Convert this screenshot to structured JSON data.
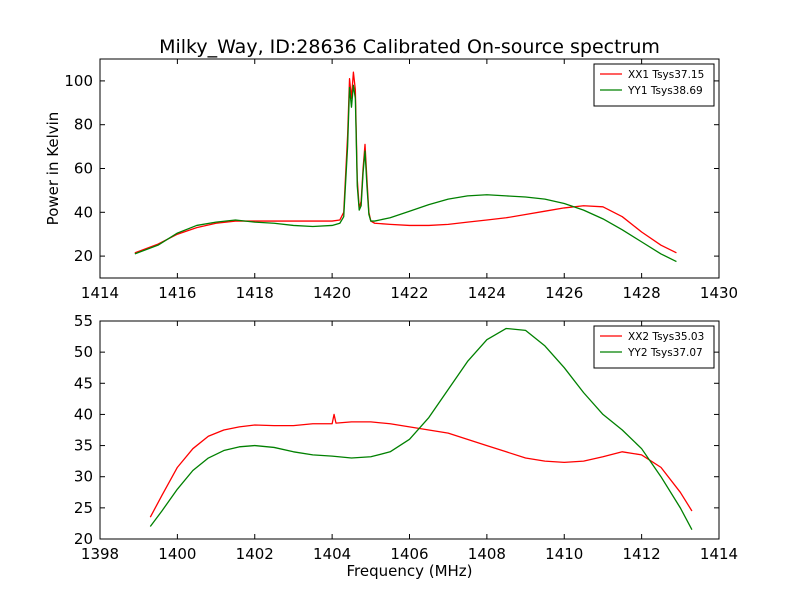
{
  "chart_data": [
    {
      "type": "line",
      "title": "Milky_Way, ID:28636 Calibrated On-source spectrum",
      "xlabel": "",
      "ylabel": "Power in Kelvin",
      "xlim": [
        1414,
        1430
      ],
      "ylim": [
        10,
        110
      ],
      "xticks": [
        1414,
        1416,
        1418,
        1420,
        1422,
        1424,
        1426,
        1428,
        1430
      ],
      "yticks": [
        20,
        40,
        60,
        80,
        100
      ],
      "grid": false,
      "legend_position": "top-right",
      "series": [
        {
          "name": "XX1 Tsys37.15",
          "color": "#ff0000",
          "x": [
            1414.9,
            1415.5,
            1416.0,
            1416.5,
            1417.0,
            1417.5,
            1418.0,
            1418.5,
            1419.0,
            1419.5,
            1420.0,
            1420.2,
            1420.3,
            1420.4,
            1420.45,
            1420.5,
            1420.55,
            1420.6,
            1420.65,
            1420.7,
            1420.75,
            1420.8,
            1420.85,
            1420.9,
            1420.95,
            1421.0,
            1421.1,
            1421.5,
            1422.0,
            1422.5,
            1423.0,
            1423.5,
            1424.0,
            1424.5,
            1425.0,
            1425.5,
            1426.0,
            1426.5,
            1427.0,
            1427.5,
            1428.0,
            1428.5,
            1428.9
          ],
          "y": [
            21.5,
            25.5,
            30.0,
            33.0,
            35.0,
            36.0,
            36.0,
            36.0,
            36.0,
            36.0,
            36.0,
            36.5,
            40.0,
            75.0,
            101.0,
            92.0,
            104.0,
            96.0,
            55.0,
            42.0,
            45.0,
            60.0,
            71.0,
            55.0,
            40.0,
            36.0,
            35.0,
            34.5,
            34.0,
            34.0,
            34.5,
            35.5,
            36.5,
            37.5,
            39.0,
            40.5,
            42.0,
            43.0,
            42.5,
            38.0,
            31.0,
            25.0,
            21.5
          ]
        },
        {
          "name": "YY1 Tsys38.69",
          "color": "#008000",
          "x": [
            1414.9,
            1415.5,
            1416.0,
            1416.5,
            1417.0,
            1417.5,
            1418.0,
            1418.5,
            1419.0,
            1419.5,
            1420.0,
            1420.2,
            1420.3,
            1420.4,
            1420.45,
            1420.5,
            1420.55,
            1420.6,
            1420.65,
            1420.7,
            1420.75,
            1420.8,
            1420.85,
            1420.9,
            1420.95,
            1421.0,
            1421.1,
            1421.5,
            1422.0,
            1422.5,
            1423.0,
            1423.5,
            1424.0,
            1424.5,
            1425.0,
            1425.5,
            1426.0,
            1426.5,
            1427.0,
            1427.5,
            1428.0,
            1428.5,
            1428.9
          ],
          "y": [
            21.0,
            25.0,
            30.5,
            34.0,
            35.5,
            36.5,
            35.5,
            35.0,
            34.0,
            33.5,
            34.0,
            35.0,
            38.0,
            70.0,
            97.0,
            88.0,
            98.0,
            92.0,
            52.0,
            41.0,
            43.0,
            58.0,
            68.0,
            52.0,
            39.0,
            36.0,
            36.0,
            37.5,
            40.5,
            43.5,
            46.0,
            47.5,
            48.0,
            47.5,
            47.0,
            46.0,
            44.0,
            41.0,
            37.0,
            32.0,
            26.5,
            21.0,
            17.5
          ]
        }
      ]
    },
    {
      "type": "line",
      "title": "",
      "xlabel": "Frequency (MHz)",
      "ylabel": "",
      "xlim": [
        1398,
        1414
      ],
      "ylim": [
        20,
        55
      ],
      "xticks": [
        1398,
        1400,
        1402,
        1404,
        1406,
        1408,
        1410,
        1412,
        1414
      ],
      "yticks": [
        20,
        25,
        30,
        35,
        40,
        45,
        50,
        55
      ],
      "grid": false,
      "legend_position": "top-right",
      "series": [
        {
          "name": "XX2 Tsys35.03",
          "color": "#ff0000",
          "x": [
            1399.3,
            1399.6,
            1400.0,
            1400.4,
            1400.8,
            1401.2,
            1401.6,
            1402.0,
            1402.5,
            1403.0,
            1403.5,
            1404.0,
            1404.05,
            1404.1,
            1404.5,
            1405.0,
            1405.5,
            1406.0,
            1406.5,
            1407.0,
            1407.5,
            1408.0,
            1408.5,
            1409.0,
            1409.5,
            1410.0,
            1410.5,
            1411.0,
            1411.5,
            1412.0,
            1412.5,
            1413.0,
            1413.3
          ],
          "y": [
            23.5,
            27.0,
            31.5,
            34.5,
            36.5,
            37.5,
            38.0,
            38.3,
            38.2,
            38.2,
            38.5,
            38.5,
            40.0,
            38.6,
            38.8,
            38.8,
            38.5,
            38.0,
            37.5,
            37.0,
            36.0,
            35.0,
            34.0,
            33.0,
            32.5,
            32.3,
            32.5,
            33.2,
            34.0,
            33.5,
            31.5,
            27.5,
            24.5
          ]
        },
        {
          "name": "YY2 Tsys37.07",
          "color": "#008000",
          "x": [
            1399.3,
            1399.6,
            1400.0,
            1400.4,
            1400.8,
            1401.2,
            1401.6,
            1402.0,
            1402.5,
            1403.0,
            1403.5,
            1404.0,
            1404.5,
            1405.0,
            1405.5,
            1406.0,
            1406.5,
            1407.0,
            1407.5,
            1408.0,
            1408.5,
            1409.0,
            1409.5,
            1410.0,
            1410.5,
            1411.0,
            1411.5,
            1412.0,
            1412.5,
            1413.0,
            1413.3
          ],
          "y": [
            22.0,
            24.5,
            28.0,
            31.0,
            33.0,
            34.2,
            34.8,
            35.0,
            34.7,
            34.0,
            33.5,
            33.3,
            33.0,
            33.2,
            34.0,
            36.0,
            39.5,
            44.0,
            48.5,
            52.0,
            53.8,
            53.5,
            51.0,
            47.5,
            43.5,
            40.0,
            37.5,
            34.5,
            30.0,
            25.0,
            21.5
          ]
        }
      ]
    }
  ]
}
